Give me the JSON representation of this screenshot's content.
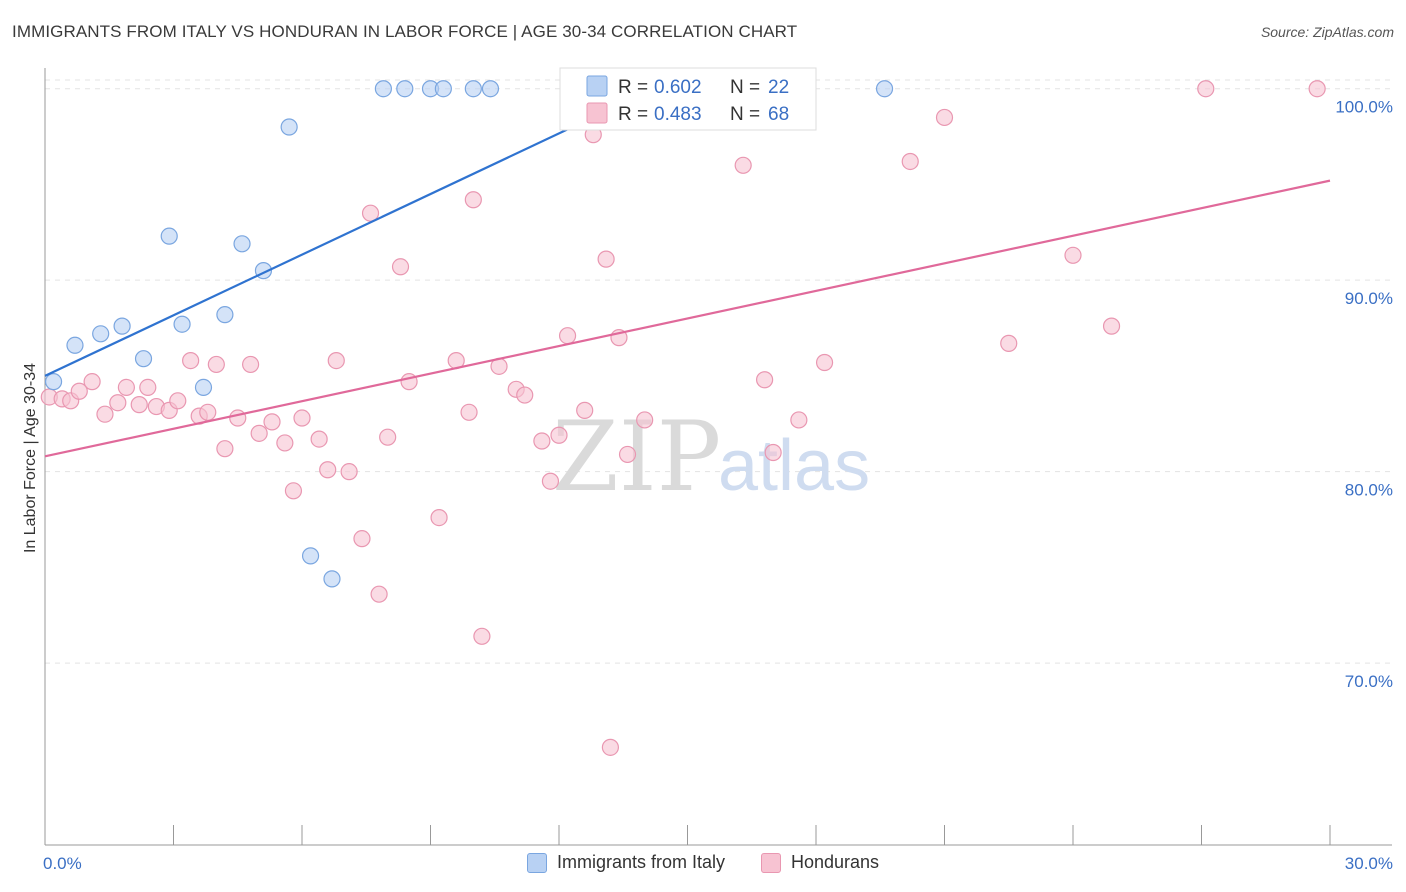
{
  "title": "IMMIGRANTS FROM ITALY VS HONDURAN IN LABOR FORCE | AGE 30-34 CORRELATION CHART",
  "source": "Source: ZipAtlas.com",
  "watermark": {
    "zip": "ZIP",
    "atlas": "atlas"
  },
  "colors": {
    "italy_fill": "#b8d1f3",
    "italy_stroke": "#7aa6e0",
    "italy_line": "#2f73d0",
    "hond_fill": "#f7c3d2",
    "hond_stroke": "#e997b1",
    "hond_line": "#e0699a",
    "grid": "#e3e3e3",
    "axis_label": "#3a6fc4"
  },
  "legend": {
    "r_label": "R =",
    "n_label": "N =",
    "italy": {
      "r": "0.602",
      "n": "22"
    },
    "hond": {
      "r": "0.483",
      "n": "68"
    }
  },
  "chart_data": {
    "type": "scatter",
    "title": "IMMIGRANTS FROM ITALY VS HONDURAN IN LABOR FORCE | AGE 30-34 CORRELATION CHART",
    "xlabel": "",
    "ylabel": "In Labor Force | Age 30-34",
    "xlim": [
      0,
      30
    ],
    "ylim": [
      60.5,
      101.5
    ],
    "x_tick_labels": [
      "0.0%",
      "30.0%"
    ],
    "y_ticks": [
      70,
      80,
      90,
      100
    ],
    "y_tick_labels": [
      "70.0%",
      "80.0%",
      "90.0%",
      "100.0%"
    ],
    "grid": true,
    "legend_position": "top-center",
    "series": [
      {
        "name": "Immigrants from Italy",
        "r": 0.602,
        "n": 22,
        "points": [
          [
            0.2,
            84.7
          ],
          [
            0.7,
            86.6
          ],
          [
            1.3,
            87.2
          ],
          [
            1.8,
            87.6
          ],
          [
            2.3,
            85.9
          ],
          [
            2.9,
            92.3
          ],
          [
            3.2,
            87.7
          ],
          [
            3.7,
            84.4
          ],
          [
            4.2,
            88.2
          ],
          [
            4.6,
            91.9
          ],
          [
            5.1,
            90.5
          ],
          [
            5.7,
            98.0
          ],
          [
            6.2,
            75.6
          ],
          [
            6.7,
            74.4
          ],
          [
            7.9,
            100.0
          ],
          [
            8.4,
            100.0
          ],
          [
            9.0,
            100.0
          ],
          [
            9.3,
            100.0
          ],
          [
            10.0,
            100.0
          ],
          [
            10.4,
            100.0
          ],
          [
            14.3,
            100.0
          ],
          [
            19.6,
            100.0
          ]
        ],
        "trend": {
          "x": [
            0.0,
            14.4
          ],
          "y": [
            85.0,
            100.2
          ]
        }
      },
      {
        "name": "Hondurans",
        "r": 0.483,
        "n": 68,
        "points": [
          [
            0.1,
            83.9
          ],
          [
            0.4,
            83.8
          ],
          [
            0.6,
            83.7
          ],
          [
            0.8,
            84.2
          ],
          [
            1.1,
            84.7
          ],
          [
            1.4,
            83.0
          ],
          [
            1.7,
            83.6
          ],
          [
            1.9,
            84.4
          ],
          [
            2.2,
            83.5
          ],
          [
            2.4,
            84.4
          ],
          [
            2.6,
            83.4
          ],
          [
            2.9,
            83.2
          ],
          [
            3.1,
            83.7
          ],
          [
            3.4,
            85.8
          ],
          [
            3.6,
            82.9
          ],
          [
            3.8,
            83.1
          ],
          [
            4.0,
            85.6
          ],
          [
            4.2,
            81.2
          ],
          [
            4.5,
            82.8
          ],
          [
            4.8,
            85.6
          ],
          [
            5.0,
            82.0
          ],
          [
            5.3,
            82.6
          ],
          [
            5.6,
            81.5
          ],
          [
            5.8,
            79.0
          ],
          [
            6.0,
            82.8
          ],
          [
            6.4,
            81.7
          ],
          [
            6.6,
            80.1
          ],
          [
            6.8,
            85.8
          ],
          [
            7.1,
            80.0
          ],
          [
            7.4,
            76.5
          ],
          [
            7.6,
            93.5
          ],
          [
            7.8,
            73.6
          ],
          [
            8.0,
            81.8
          ],
          [
            8.3,
            90.7
          ],
          [
            8.5,
            84.7
          ],
          [
            9.2,
            77.6
          ],
          [
            9.6,
            85.8
          ],
          [
            9.9,
            83.1
          ],
          [
            10.0,
            94.2
          ],
          [
            10.2,
            71.4
          ],
          [
            10.6,
            85.5
          ],
          [
            11.0,
            84.3
          ],
          [
            11.2,
            84.0
          ],
          [
            11.6,
            81.6
          ],
          [
            11.8,
            79.5
          ],
          [
            12.0,
            81.9
          ],
          [
            12.2,
            87.1
          ],
          [
            12.6,
            83.2
          ],
          [
            12.8,
            97.6
          ],
          [
            13.1,
            91.1
          ],
          [
            13.2,
            65.6
          ],
          [
            13.4,
            87.0
          ],
          [
            13.6,
            80.9
          ],
          [
            14.0,
            82.7
          ],
          [
            15.6,
            100.0
          ],
          [
            16.0,
            99.2
          ],
          [
            16.3,
            96.0
          ],
          [
            16.8,
            84.8
          ],
          [
            17.0,
            81.0
          ],
          [
            17.6,
            82.7
          ],
          [
            18.2,
            85.7
          ],
          [
            20.2,
            96.2
          ],
          [
            21.0,
            98.5
          ],
          [
            22.5,
            86.7
          ],
          [
            24.0,
            91.3
          ],
          [
            24.9,
            87.6
          ],
          [
            27.1,
            100.0
          ],
          [
            29.7,
            100.0
          ]
        ],
        "trend": {
          "x": [
            0.0,
            30.0
          ],
          "y": [
            80.8,
            95.2
          ]
        }
      }
    ]
  }
}
